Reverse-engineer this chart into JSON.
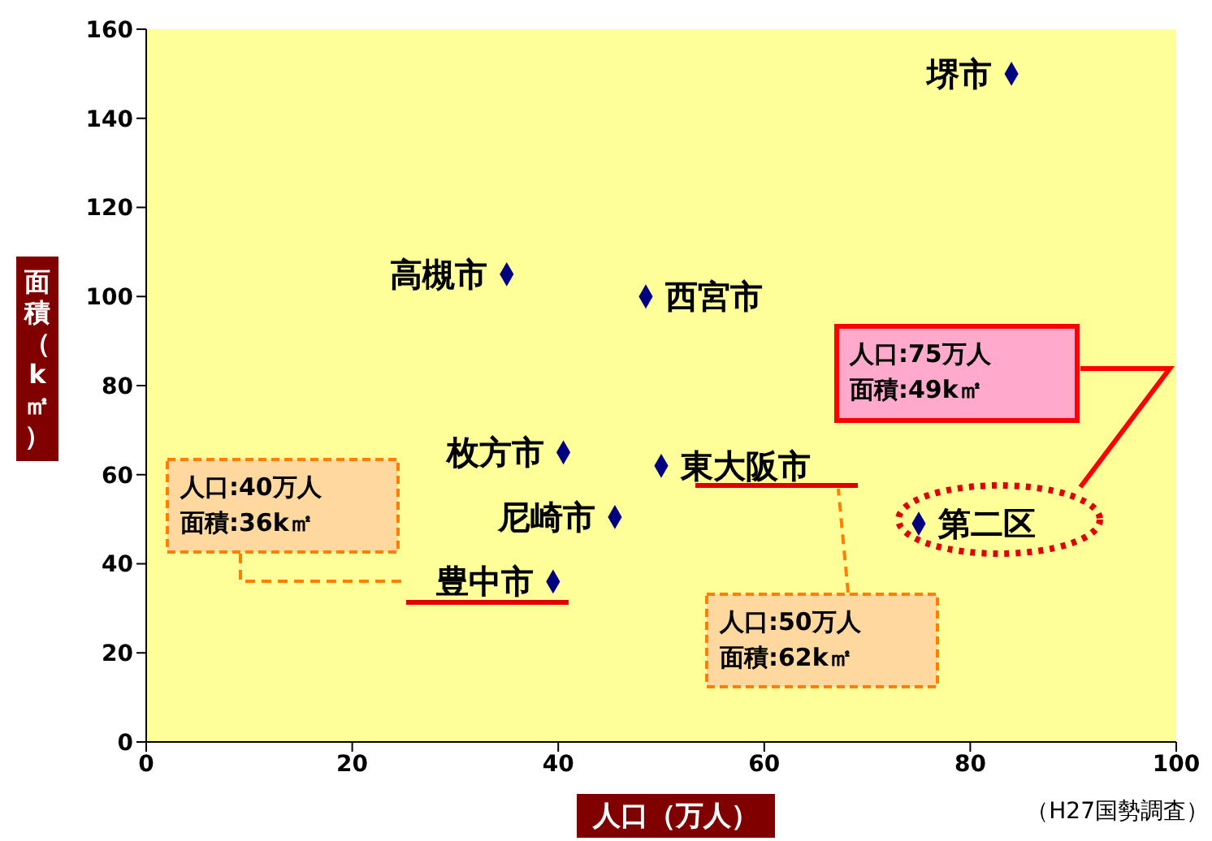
{
  "chart_data": {
    "type": "scatter",
    "xlabel": "人口（万人）",
    "ylabel": "面積（k㎡）",
    "series": [
      {
        "color": "#000080",
        "x": [
          84,
          35,
          48.5,
          40.5,
          50,
          45.5,
          39.5,
          75
        ],
        "values": [
          150,
          105,
          100,
          65,
          62,
          50.5,
          36,
          49
        ]
      }
    ],
    "xlim": [
      0,
      100
    ],
    "xticks": [
      0,
      20,
      40,
      60,
      80,
      100
    ],
    "ylim": [
      0,
      160
    ],
    "yticks": [
      0,
      20,
      40,
      60,
      80,
      100,
      120,
      140,
      160
    ],
    "marker": "diamond",
    "grid": false,
    "annotations": [
      {
        "text": "堺市",
        "x": 84,
        "y": 150
      },
      {
        "text": "高槻市",
        "x": 35,
        "y": 105
      },
      {
        "text": "西宮市",
        "x": 48.5,
        "y": 100
      },
      {
        "text": "枚方市",
        "x": 40.5,
        "y": 65
      },
      {
        "text": "東大阪市",
        "x": 50,
        "y": 62
      },
      {
        "text": "尼崎市",
        "x": 45.5,
        "y": 50.5
      },
      {
        "text": "豊中市",
        "x": 39.5,
        "y": 36
      },
      {
        "text": "第二区",
        "x": 75,
        "y": 49
      },
      "人口:40万人",
      "面積:36k㎡",
      "人口:50万人",
      "面積:62k㎡",
      "人口:75万人",
      "面積:49k㎡",
      "（H27国勢調査）"
    ]
  }
}
